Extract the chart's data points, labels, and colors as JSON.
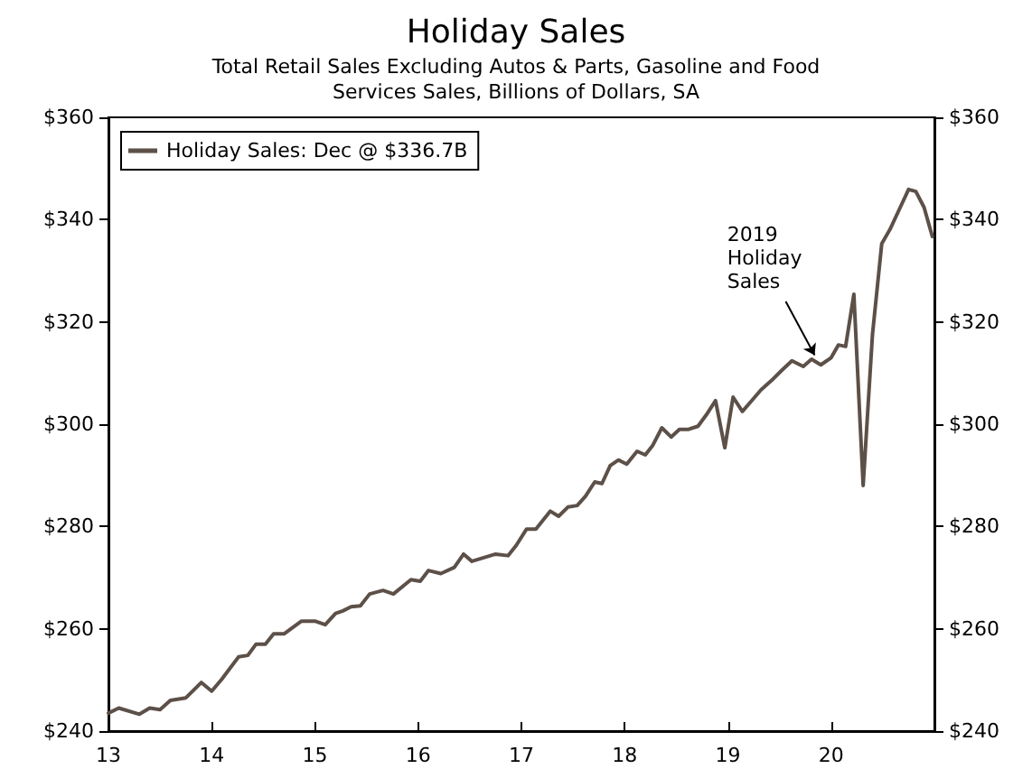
{
  "chart_data": {
    "type": "line",
    "title": "Holiday Sales",
    "subtitle": "Total Retail Sales Excluding Autos & Parts, Gasoline and Food\nServices Sales, Billions of Dollars, SA",
    "xlim": [
      13,
      21
    ],
    "xticks": [
      13,
      14,
      15,
      16,
      17,
      18,
      19,
      20
    ],
    "ylim": [
      240,
      360
    ],
    "yticks": [
      {
        "value": 240,
        "label": "$240"
      },
      {
        "value": 260,
        "label": "$260"
      },
      {
        "value": 280,
        "label": "$280"
      },
      {
        "value": 300,
        "label": "$300"
      },
      {
        "value": 320,
        "label": "$320"
      },
      {
        "value": 340,
        "label": "$340"
      },
      {
        "value": 360,
        "label": "$360"
      }
    ],
    "y2lim": [
      240,
      360
    ],
    "y2ticks": [
      {
        "value": 240,
        "label": "$240"
      },
      {
        "value": 260,
        "label": "$260"
      },
      {
        "value": 280,
        "label": "$280"
      },
      {
        "value": 300,
        "label": "$300"
      },
      {
        "value": 320,
        "label": "$320"
      },
      {
        "value": 340,
        "label": "$340"
      },
      {
        "value": 360,
        "label": "$360"
      }
    ],
    "legend": "top left",
    "grid": false,
    "marker": "none",
    "line_style": "solid",
    "annotations": [
      {
        "text": "2019\nHoliday\nSales",
        "x": 19.88,
        "y": 312
      }
    ],
    "series": [
      {
        "name": "Holiday Sales: Dec @ $336.7B",
        "color": "#5c5048",
        "x": [
          13.0,
          13.1,
          13.3,
          13.4,
          13.5,
          13.6,
          13.75,
          13.9,
          14.0,
          14.1,
          14.26,
          14.35,
          14.43,
          14.52,
          14.6,
          14.7,
          14.87,
          15.0,
          15.1,
          15.2,
          15.27,
          15.35,
          15.44,
          15.53,
          15.66,
          15.76,
          15.93,
          16.02,
          16.1,
          16.22,
          16.35,
          16.44,
          16.52,
          16.75,
          16.87,
          16.95,
          17.05,
          17.14,
          17.28,
          17.36,
          17.45,
          17.54,
          17.62,
          17.71,
          17.78,
          17.86,
          17.94,
          18.02,
          18.12,
          18.2,
          18.27,
          18.36,
          18.45,
          18.53,
          18.62,
          18.71,
          18.79,
          18.88,
          18.97,
          19.05,
          19.14,
          19.23,
          19.32,
          19.42,
          19.52,
          19.62,
          19.73,
          19.81,
          19.9,
          20.0,
          20.07,
          20.14,
          20.22,
          20.31,
          20.4,
          20.49,
          20.57,
          20.66,
          20.75,
          20.82,
          20.9,
          20.98
        ],
        "values": [
          243.5,
          244.5,
          243.3,
          244.5,
          244.2,
          246,
          246.5,
          249.5,
          247.8,
          250.2,
          254.5,
          254.8,
          257,
          257,
          259,
          259,
          261.5,
          261.5,
          260.8,
          263,
          263.5,
          264.3,
          264.5,
          266.8,
          267.5,
          266.8,
          269.6,
          269.3,
          271.4,
          270.8,
          272,
          274.6,
          273.2,
          274.6,
          274.3,
          276.3,
          279.5,
          279.5,
          283,
          282,
          283.8,
          284.1,
          285.9,
          288.7,
          288.4,
          291.9,
          293,
          292.2,
          294.7,
          294,
          295.8,
          299.3,
          297.5,
          299,
          299,
          299.6,
          301.8,
          304.6,
          295.4,
          305.3,
          302.5,
          304.6,
          306.7,
          308.5,
          310.5,
          312.4,
          311.3,
          312.7,
          311.6,
          313,
          315.5,
          315.2,
          325.4,
          288,
          317.5,
          335.3,
          338.1,
          342,
          345.9,
          345.5,
          342.4,
          336.7
        ]
      }
    ]
  }
}
